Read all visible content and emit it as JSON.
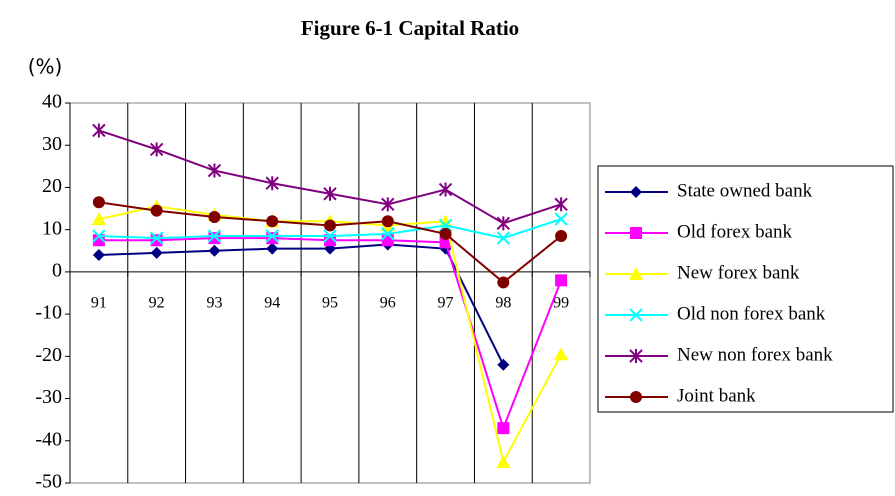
{
  "chart_data": {
    "type": "line",
    "title": "Figure 6-1 Capital Ratio",
    "y_label": "(%)",
    "categories": [
      "91",
      "92",
      "93",
      "94",
      "95",
      "96",
      "97",
      "98",
      "99"
    ],
    "ylim": [
      -50,
      40
    ],
    "yticks": [
      40,
      30,
      20,
      10,
      0,
      -10,
      -20,
      -30,
      -40,
      -50
    ],
    "grid": "vertical",
    "series": [
      {
        "name": "State owned bank",
        "color": "#000080",
        "marker": "diamond",
        "values": [
          4,
          4.5,
          5,
          5.5,
          5.5,
          6.5,
          5.5,
          -22,
          null
        ]
      },
      {
        "name": "Old forex bank",
        "color": "#ff00ff",
        "marker": "square",
        "values": [
          7.5,
          7.5,
          8,
          8,
          7.5,
          7.5,
          7,
          -37,
          -2
        ]
      },
      {
        "name": "New forex bank",
        "color": "#ffff00",
        "marker": "triangle",
        "values": [
          12.5,
          15.5,
          13.5,
          12,
          12,
          11,
          12,
          -45,
          -19.5
        ]
      },
      {
        "name": "Old non forex bank",
        "color": "#00ffff",
        "marker": "x",
        "values": [
          8.5,
          8,
          8.5,
          8.5,
          8.5,
          9,
          11,
          8,
          12.5
        ]
      },
      {
        "name": "New non forex bank",
        "color": "#800080",
        "marker": "star",
        "values": [
          33.5,
          29,
          24,
          21,
          18.5,
          16,
          19.5,
          11.5,
          16
        ]
      },
      {
        "name": "Joint bank",
        "color": "#800000",
        "marker": "circle",
        "values": [
          16.5,
          14.5,
          13,
          12,
          11,
          12,
          9,
          -2.5,
          8.5
        ]
      }
    ]
  }
}
